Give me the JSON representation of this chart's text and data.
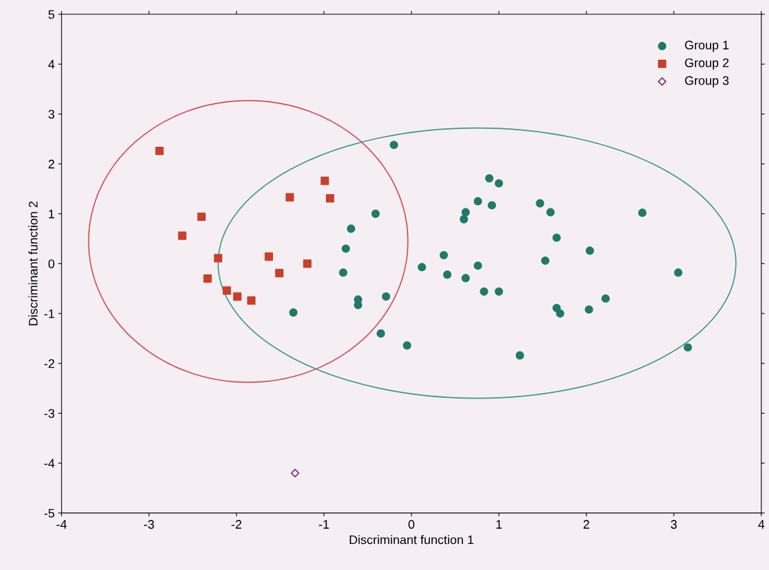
{
  "chart_data": {
    "type": "scatter",
    "xlabel": "Discriminant function 1",
    "ylabel": "Discriminant function 2",
    "xlim": [
      -4,
      4
    ],
    "ylim": [
      -5,
      5
    ],
    "xticks": [
      -4,
      -3,
      -2,
      -1,
      0,
      1,
      2,
      3,
      4
    ],
    "yticks": [
      -5,
      -4,
      -3,
      -2,
      -1,
      0,
      1,
      2,
      3,
      4,
      5
    ],
    "legend": "top right",
    "series": [
      {
        "name": "Group 1",
        "color": "#1f7a6a",
        "marker": "circle",
        "x": [
          -1.35,
          -0.2,
          0.89,
          1.0,
          0.76,
          0.92,
          0.62,
          0.6,
          1.47,
          -0.41,
          -0.69,
          -0.75,
          -0.78,
          0.37,
          0.12,
          0.76,
          0.41,
          0.62,
          0.83,
          1.0,
          1.53,
          -0.61,
          -0.61,
          -0.29,
          -0.35,
          -0.05,
          1.24,
          1.59,
          2.64,
          1.66,
          2.04,
          3.05,
          2.22,
          1.66,
          1.7,
          2.03,
          3.16
        ],
        "values": [
          -0.98,
          2.38,
          1.71,
          1.61,
          1.25,
          1.17,
          1.03,
          0.89,
          1.21,
          1.0,
          0.7,
          0.3,
          -0.18,
          0.17,
          -0.07,
          -0.04,
          -0.22,
          -0.29,
          -0.56,
          -0.56,
          0.06,
          -0.72,
          -0.83,
          -0.66,
          -1.4,
          -1.64,
          -1.84,
          1.03,
          1.02,
          0.52,
          0.26,
          -0.18,
          -0.7,
          -0.89,
          -1.0,
          -0.92,
          -1.68
        ]
      },
      {
        "name": "Group 2",
        "color": "#c8402c",
        "marker": "square",
        "x": [
          -2.88,
          -2.62,
          -2.4,
          -2.21,
          -2.33,
          -2.11,
          -1.99,
          -1.83,
          -1.63,
          -1.51,
          -1.39,
          -1.19,
          -0.99,
          -0.93
        ],
        "values": [
          2.26,
          0.56,
          0.94,
          0.11,
          -0.3,
          -0.54,
          -0.66,
          -0.74,
          0.14,
          -0.19,
          1.33,
          0.0,
          1.66,
          1.31
        ]
      },
      {
        "name": "Group 3",
        "color": "#7a2a6a",
        "marker": "diamond",
        "x": [
          -1.33
        ],
        "values": [
          -4.2
        ]
      }
    ]
  }
}
